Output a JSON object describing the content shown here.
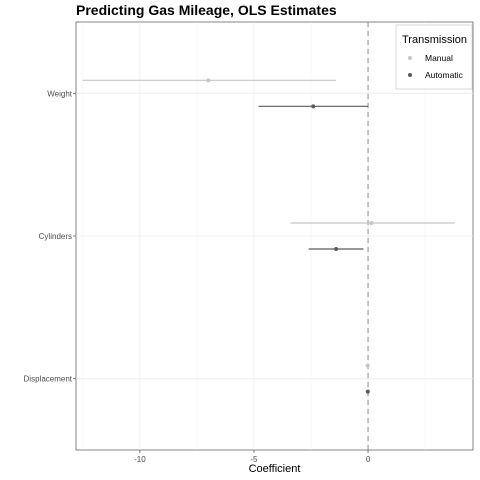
{
  "chart_data": {
    "type": "coefficient-plot",
    "title": "Predicting Gas Mileage, OLS Estimates",
    "xlabel": "Coefficient",
    "ylabel": "",
    "xlim": [
      -12.8,
      4.6
    ],
    "x_ticks": [
      -10,
      -5,
      0
    ],
    "grid": true,
    "reference_line": 0,
    "categories": [
      "Weight",
      "Cylinders",
      "Displacement"
    ],
    "series": [
      {
        "name": "Manual",
        "color": "#c6c6c6",
        "points": [
          {
            "term": "Weight",
            "estimate": -7.0,
            "lower": -12.5,
            "upper": -1.4
          },
          {
            "term": "Cylinders",
            "estimate": 0.15,
            "lower": -3.4,
            "upper": 3.8
          },
          {
            "term": "Displacement",
            "estimate": -0.02,
            "lower": -0.06,
            "upper": 0.02
          }
        ]
      },
      {
        "name": "Automatic",
        "color": "#5a5a5a",
        "points": [
          {
            "term": "Weight",
            "estimate": -2.4,
            "lower": -4.8,
            "upper": 0.0
          },
          {
            "term": "Cylinders",
            "estimate": -1.4,
            "lower": -2.6,
            "upper": -0.2
          },
          {
            "term": "Displacement",
            "estimate": -0.01,
            "lower": -0.04,
            "upper": 0.02
          }
        ]
      }
    ],
    "legend": {
      "title": "Transmission",
      "position": "top-right"
    }
  }
}
